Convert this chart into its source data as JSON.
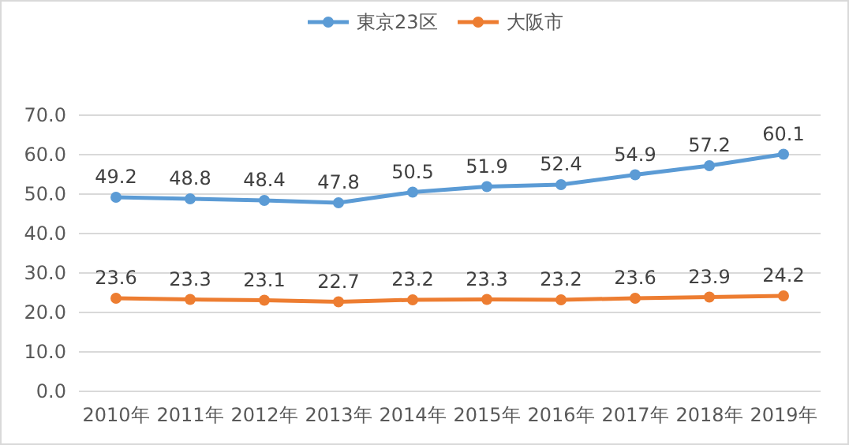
{
  "chart_data": {
    "type": "line",
    "categories": [
      "2010年",
      "2011年",
      "2012年",
      "2013年",
      "2014年",
      "2015年",
      "2016年",
      "2017年",
      "2018年",
      "2019年"
    ],
    "series": [
      {
        "name": "東京23区",
        "color": "#5b9bd5",
        "values": [
          49.2,
          48.8,
          48.4,
          47.8,
          50.5,
          51.9,
          52.4,
          54.9,
          57.2,
          60.1
        ]
      },
      {
        "name": "大阪市",
        "color": "#ed7d31",
        "values": [
          23.6,
          23.3,
          23.1,
          22.7,
          23.2,
          23.3,
          23.2,
          23.6,
          23.9,
          24.2
        ]
      }
    ],
    "ylim": [
      0,
      70
    ],
    "yticks": [
      {
        "value": 0,
        "label": "0.0"
      },
      {
        "value": 10,
        "label": "10.0"
      },
      {
        "value": 20,
        "label": "20.0"
      },
      {
        "value": 30,
        "label": "30.0"
      },
      {
        "value": 40,
        "label": "40.0"
      },
      {
        "value": 50,
        "label": "50.0"
      },
      {
        "value": 60,
        "label": "60.0"
      },
      {
        "value": 70,
        "label": "70.0"
      }
    ],
    "grid": "y",
    "legend": "top",
    "marker": "circle",
    "data_labels": true
  }
}
